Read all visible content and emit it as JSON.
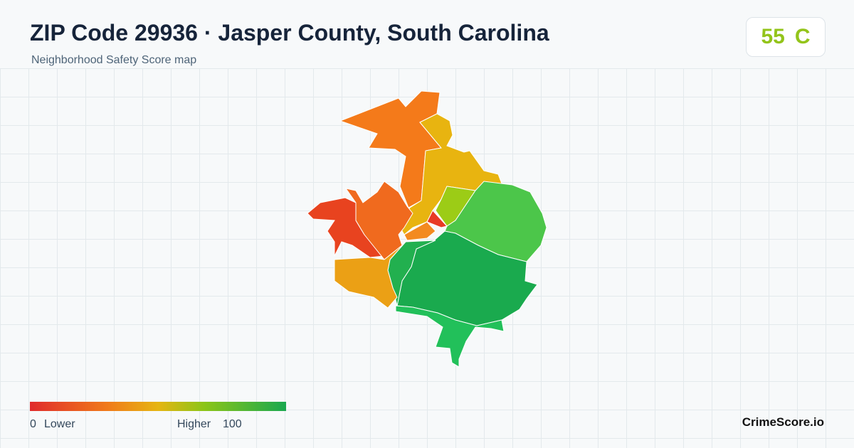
{
  "header": {
    "title": "ZIP Code 29936 · Jasper County, South Carolina",
    "subtitle": "Neighborhood Safety Score map"
  },
  "score": {
    "value": 55,
    "grade": "C"
  },
  "legend": {
    "min": 0,
    "min_label": "Lower",
    "max_label": "Higher",
    "max": 100
  },
  "brand": "CrimeScore.io"
}
